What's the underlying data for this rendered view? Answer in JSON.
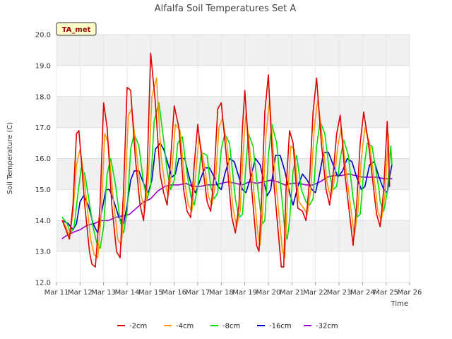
{
  "chart_data": {
    "type": "line",
    "title": "Alfalfa Soil Temperatures Set A",
    "xlabel": "Time",
    "ylabel": "Soil Temperature (C)",
    "badge": "TA_met",
    "ylim": [
      12.0,
      20.0
    ],
    "xlim": [
      11,
      26
    ],
    "yticks": [
      12.0,
      13.0,
      14.0,
      15.0,
      16.0,
      17.0,
      18.0,
      19.0,
      20.0
    ],
    "ytick_labels": [
      "12.0",
      "13.0",
      "14.0",
      "15.0",
      "16.0",
      "17.0",
      "18.0",
      "19.0",
      "20.0"
    ],
    "xticks": [
      11,
      12,
      13,
      14,
      15,
      16,
      17,
      18,
      19,
      20,
      21,
      22,
      23,
      24,
      25,
      26
    ],
    "xtick_labels": [
      "Mar 11",
      "Mar 12",
      "Mar 13",
      "Mar 14",
      "Mar 15",
      "Mar 16",
      "Mar 17",
      "Mar 18",
      "Mar 19",
      "Mar 20",
      "Mar 21",
      "Mar 22",
      "Mar 23",
      "Mar 24",
      "Mar 25",
      "Mar 26"
    ],
    "grid": true,
    "legend_position": "bottom",
    "series": [
      {
        "name": "-2cm",
        "color": "#dd0000",
        "x": [
          11.25,
          11.4,
          11.55,
          11.7,
          11.85,
          11.95,
          12.05,
          12.2,
          12.4,
          12.5,
          12.65,
          12.85,
          13.0,
          13.15,
          13.35,
          13.55,
          13.7,
          13.85,
          14.0,
          14.15,
          14.35,
          14.55,
          14.7,
          14.85,
          15.0,
          15.2,
          15.4,
          15.55,
          15.7,
          15.85,
          16.0,
          16.2,
          16.4,
          16.55,
          16.7,
          16.85,
          17.0,
          17.25,
          17.4,
          17.55,
          17.7,
          17.85,
          18.0,
          18.2,
          18.45,
          18.6,
          18.75,
          18.9,
          19.0,
          19.2,
          19.5,
          19.6,
          19.7,
          19.85,
          20.0,
          20.2,
          20.55,
          20.65,
          20.75,
          20.9,
          21.05,
          21.25,
          21.45,
          21.6,
          21.75,
          21.9,
          22.05,
          22.25,
          22.45,
          22.6,
          22.75,
          22.9,
          23.05,
          23.25,
          23.45,
          23.6,
          23.75,
          23.9,
          24.05,
          24.25,
          24.55,
          24.6,
          24.75,
          24.9,
          25.05,
          25.15
        ],
        "y": [
          14.0,
          13.7,
          13.4,
          14.5,
          16.8,
          16.9,
          16.0,
          14.5,
          13.0,
          12.6,
          12.5,
          14.5,
          17.8,
          17.0,
          14.5,
          13.0,
          12.8,
          15.0,
          18.3,
          18.2,
          16.0,
          14.5,
          14.0,
          15.5,
          19.4,
          17.8,
          15.5,
          14.9,
          14.5,
          16.0,
          17.7,
          17.0,
          15.0,
          14.3,
          14.1,
          15.8,
          17.1,
          15.5,
          14.6,
          14.3,
          15.5,
          17.6,
          17.8,
          16.2,
          14.1,
          13.6,
          14.5,
          17.0,
          18.2,
          15.8,
          13.2,
          13.0,
          14.5,
          17.5,
          18.7,
          15.5,
          12.5,
          12.5,
          15.0,
          16.9,
          16.5,
          14.4,
          14.3,
          14.0,
          15.3,
          17.5,
          18.6,
          16.5,
          15.0,
          14.5,
          15.5,
          16.8,
          17.4,
          15.5,
          14.2,
          13.2,
          14.5,
          16.5,
          17.5,
          16.5,
          14.5,
          14.2,
          13.8,
          15.0,
          17.2,
          15.1
        ]
      },
      {
        "name": "-4cm",
        "color": "#ff9900",
        "x": [
          11.25,
          11.4,
          11.55,
          11.7,
          11.85,
          12.0,
          12.1,
          12.25,
          12.45,
          12.6,
          12.75,
          12.9,
          13.05,
          13.2,
          13.4,
          13.6,
          13.75,
          13.9,
          14.05,
          14.2,
          14.4,
          14.6,
          14.75,
          14.9,
          15.05,
          15.25,
          15.45,
          15.6,
          15.75,
          15.9,
          16.05,
          16.25,
          16.45,
          16.6,
          16.75,
          16.9,
          17.05,
          17.3,
          17.45,
          17.6,
          17.75,
          17.9,
          18.05,
          18.25,
          18.5,
          18.65,
          18.8,
          18.95,
          19.05,
          19.25,
          19.55,
          19.65,
          19.75,
          19.9,
          20.05,
          20.25,
          20.6,
          20.7,
          20.8,
          20.95,
          21.1,
          21.3,
          21.5,
          21.65,
          21.8,
          21.95,
          22.1,
          22.3,
          22.5,
          22.65,
          22.8,
          22.95,
          23.1,
          23.3,
          23.5,
          23.65,
          23.8,
          23.95,
          24.1,
          24.3,
          24.6,
          24.65,
          24.8,
          24.95,
          25.1,
          25.15
        ],
        "y": [
          14.0,
          13.8,
          13.5,
          14.2,
          15.8,
          16.3,
          15.8,
          14.8,
          13.4,
          12.9,
          12.8,
          14.2,
          16.8,
          16.5,
          14.8,
          13.4,
          13.2,
          14.6,
          17.4,
          17.6,
          16.2,
          14.8,
          14.3,
          15.3,
          18.0,
          18.6,
          16.0,
          15.2,
          14.8,
          15.6,
          17.1,
          16.9,
          15.2,
          14.5,
          14.3,
          15.4,
          16.7,
          15.7,
          14.8,
          14.5,
          15.2,
          17.0,
          17.3,
          16.4,
          14.4,
          13.8,
          14.3,
          16.5,
          17.5,
          16.0,
          13.6,
          13.2,
          14.2,
          16.8,
          17.9,
          15.8,
          13.0,
          12.8,
          14.5,
          16.4,
          16.3,
          14.6,
          14.4,
          14.2,
          15.0,
          17.0,
          17.9,
          16.6,
          15.2,
          14.7,
          15.3,
          16.4,
          17.0,
          15.6,
          14.4,
          13.5,
          14.3,
          16.0,
          17.0,
          16.5,
          14.7,
          14.3,
          14.0,
          14.8,
          16.8,
          15.4
        ]
      },
      {
        "name": "-8cm",
        "color": "#00dd00",
        "x": [
          11.25,
          11.45,
          11.6,
          11.75,
          11.9,
          12.05,
          12.2,
          12.35,
          12.55,
          12.7,
          12.85,
          13.0,
          13.15,
          13.3,
          13.5,
          13.7,
          13.85,
          14.0,
          14.15,
          14.3,
          14.5,
          14.7,
          14.85,
          15.0,
          15.15,
          15.35,
          15.55,
          15.7,
          15.85,
          16.0,
          16.15,
          16.35,
          16.55,
          16.7,
          16.85,
          17.0,
          17.15,
          17.4,
          17.55,
          17.7,
          17.85,
          18.0,
          18.15,
          18.35,
          18.6,
          18.75,
          18.9,
          19.05,
          19.15,
          19.35,
          19.65,
          19.75,
          19.85,
          20.0,
          20.15,
          20.35,
          20.7,
          20.8,
          20.9,
          21.05,
          21.2,
          21.4,
          21.6,
          21.75,
          21.9,
          22.05,
          22.2,
          22.4,
          22.6,
          22.75,
          22.9,
          23.05,
          23.2,
          23.4,
          23.6,
          23.75,
          23.9,
          24.05,
          24.2,
          24.4,
          24.7,
          24.75,
          24.9,
          25.05,
          25.2,
          25.25
        ],
        "y": [
          14.1,
          13.9,
          13.6,
          13.8,
          14.8,
          15.7,
          15.5,
          14.8,
          13.8,
          13.3,
          13.1,
          13.8,
          15.5,
          16.0,
          15.2,
          14.0,
          13.6,
          14.3,
          16.3,
          16.8,
          16.4,
          15.2,
          14.7,
          15.1,
          17.2,
          17.8,
          16.6,
          15.6,
          15.0,
          15.3,
          16.5,
          16.7,
          15.5,
          14.8,
          14.5,
          15.1,
          16.2,
          16.1,
          15.1,
          14.7,
          14.9,
          16.3,
          16.8,
          16.5,
          14.7,
          14.1,
          14.2,
          15.8,
          16.8,
          16.4,
          14.4,
          13.9,
          14.0,
          16.1,
          17.1,
          16.5,
          13.7,
          13.4,
          14.0,
          15.6,
          16.1,
          15.0,
          14.6,
          14.5,
          14.7,
          16.4,
          17.2,
          16.8,
          15.5,
          15.0,
          15.1,
          16.0,
          16.6,
          16.1,
          14.7,
          14.1,
          14.2,
          15.6,
          16.5,
          16.4,
          15.0,
          14.6,
          14.3,
          14.9,
          16.4,
          15.8
        ]
      },
      {
        "name": "-16cm",
        "color": "#0000cc",
        "x": [
          11.25,
          11.5,
          11.7,
          11.85,
          12.0,
          12.15,
          12.35,
          12.55,
          12.75,
          12.9,
          13.1,
          13.25,
          13.45,
          13.65,
          13.85,
          14.0,
          14.15,
          14.3,
          14.5,
          14.7,
          14.9,
          15.05,
          15.2,
          15.4,
          15.55,
          15.75,
          15.9,
          16.05,
          16.2,
          16.45,
          16.6,
          16.75,
          16.9,
          17.1,
          17.3,
          17.5,
          17.7,
          17.85,
          18.0,
          18.15,
          18.35,
          18.55,
          18.75,
          18.9,
          19.05,
          19.25,
          19.45,
          19.65,
          19.8,
          19.95,
          20.1,
          20.3,
          20.5,
          20.7,
          20.9,
          21.05,
          21.25,
          21.45,
          21.65,
          21.85,
          22.0,
          22.15,
          22.35,
          22.55,
          22.75,
          22.95,
          23.15,
          23.35,
          23.55,
          23.75,
          23.95,
          24.1,
          24.3,
          24.5,
          24.7,
          24.9,
          25.05,
          25.2,
          25.25
        ],
        "y": [
          14.0,
          13.9,
          13.7,
          13.9,
          14.6,
          14.8,
          14.5,
          13.9,
          13.6,
          14.2,
          15.0,
          15.0,
          14.6,
          14.1,
          13.9,
          14.5,
          15.3,
          15.6,
          15.6,
          15.2,
          14.9,
          15.3,
          16.3,
          16.5,
          16.3,
          15.8,
          15.4,
          15.5,
          16.0,
          16.0,
          15.5,
          15.1,
          14.9,
          15.3,
          15.7,
          15.7,
          15.4,
          15.1,
          15.0,
          15.5,
          16.0,
          15.9,
          15.4,
          15.0,
          14.9,
          15.4,
          16.0,
          15.8,
          15.3,
          14.8,
          15.0,
          16.1,
          16.1,
          15.6,
          14.9,
          14.5,
          15.1,
          15.5,
          15.3,
          15.0,
          14.9,
          15.4,
          16.2,
          16.2,
          15.8,
          15.4,
          15.6,
          16.0,
          15.9,
          15.4,
          15.0,
          15.1,
          15.8,
          15.9,
          15.4,
          15.0,
          14.9,
          15.6,
          15.8
        ]
      },
      {
        "name": "-32cm",
        "color": "#9900cc",
        "x": [
          11.25,
          11.5,
          11.8,
          12.0,
          12.3,
          12.6,
          12.9,
          13.2,
          13.5,
          13.8,
          14.1,
          14.4,
          14.7,
          15.0,
          15.3,
          15.6,
          15.9,
          16.2,
          16.5,
          16.8,
          17.1,
          17.4,
          17.7,
          18.0,
          18.3,
          18.6,
          18.9,
          19.2,
          19.5,
          19.8,
          20.1,
          20.4,
          20.7,
          21.0,
          21.3,
          21.6,
          21.9,
          22.2,
          22.5,
          22.8,
          23.1,
          23.4,
          23.7,
          24.0,
          24.3,
          24.6,
          24.9,
          25.25
        ],
        "y": [
          13.42,
          13.55,
          13.65,
          13.7,
          13.85,
          13.9,
          14.0,
          14.0,
          14.1,
          14.15,
          14.2,
          14.4,
          14.6,
          14.7,
          14.95,
          15.1,
          15.15,
          15.15,
          15.2,
          15.1,
          15.1,
          15.15,
          15.15,
          15.2,
          15.25,
          15.2,
          15.15,
          15.25,
          15.2,
          15.25,
          15.3,
          15.25,
          15.15,
          15.2,
          15.2,
          15.15,
          15.15,
          15.25,
          15.4,
          15.45,
          15.45,
          15.5,
          15.45,
          15.4,
          15.4,
          15.4,
          15.35,
          15.35
        ]
      }
    ]
  }
}
